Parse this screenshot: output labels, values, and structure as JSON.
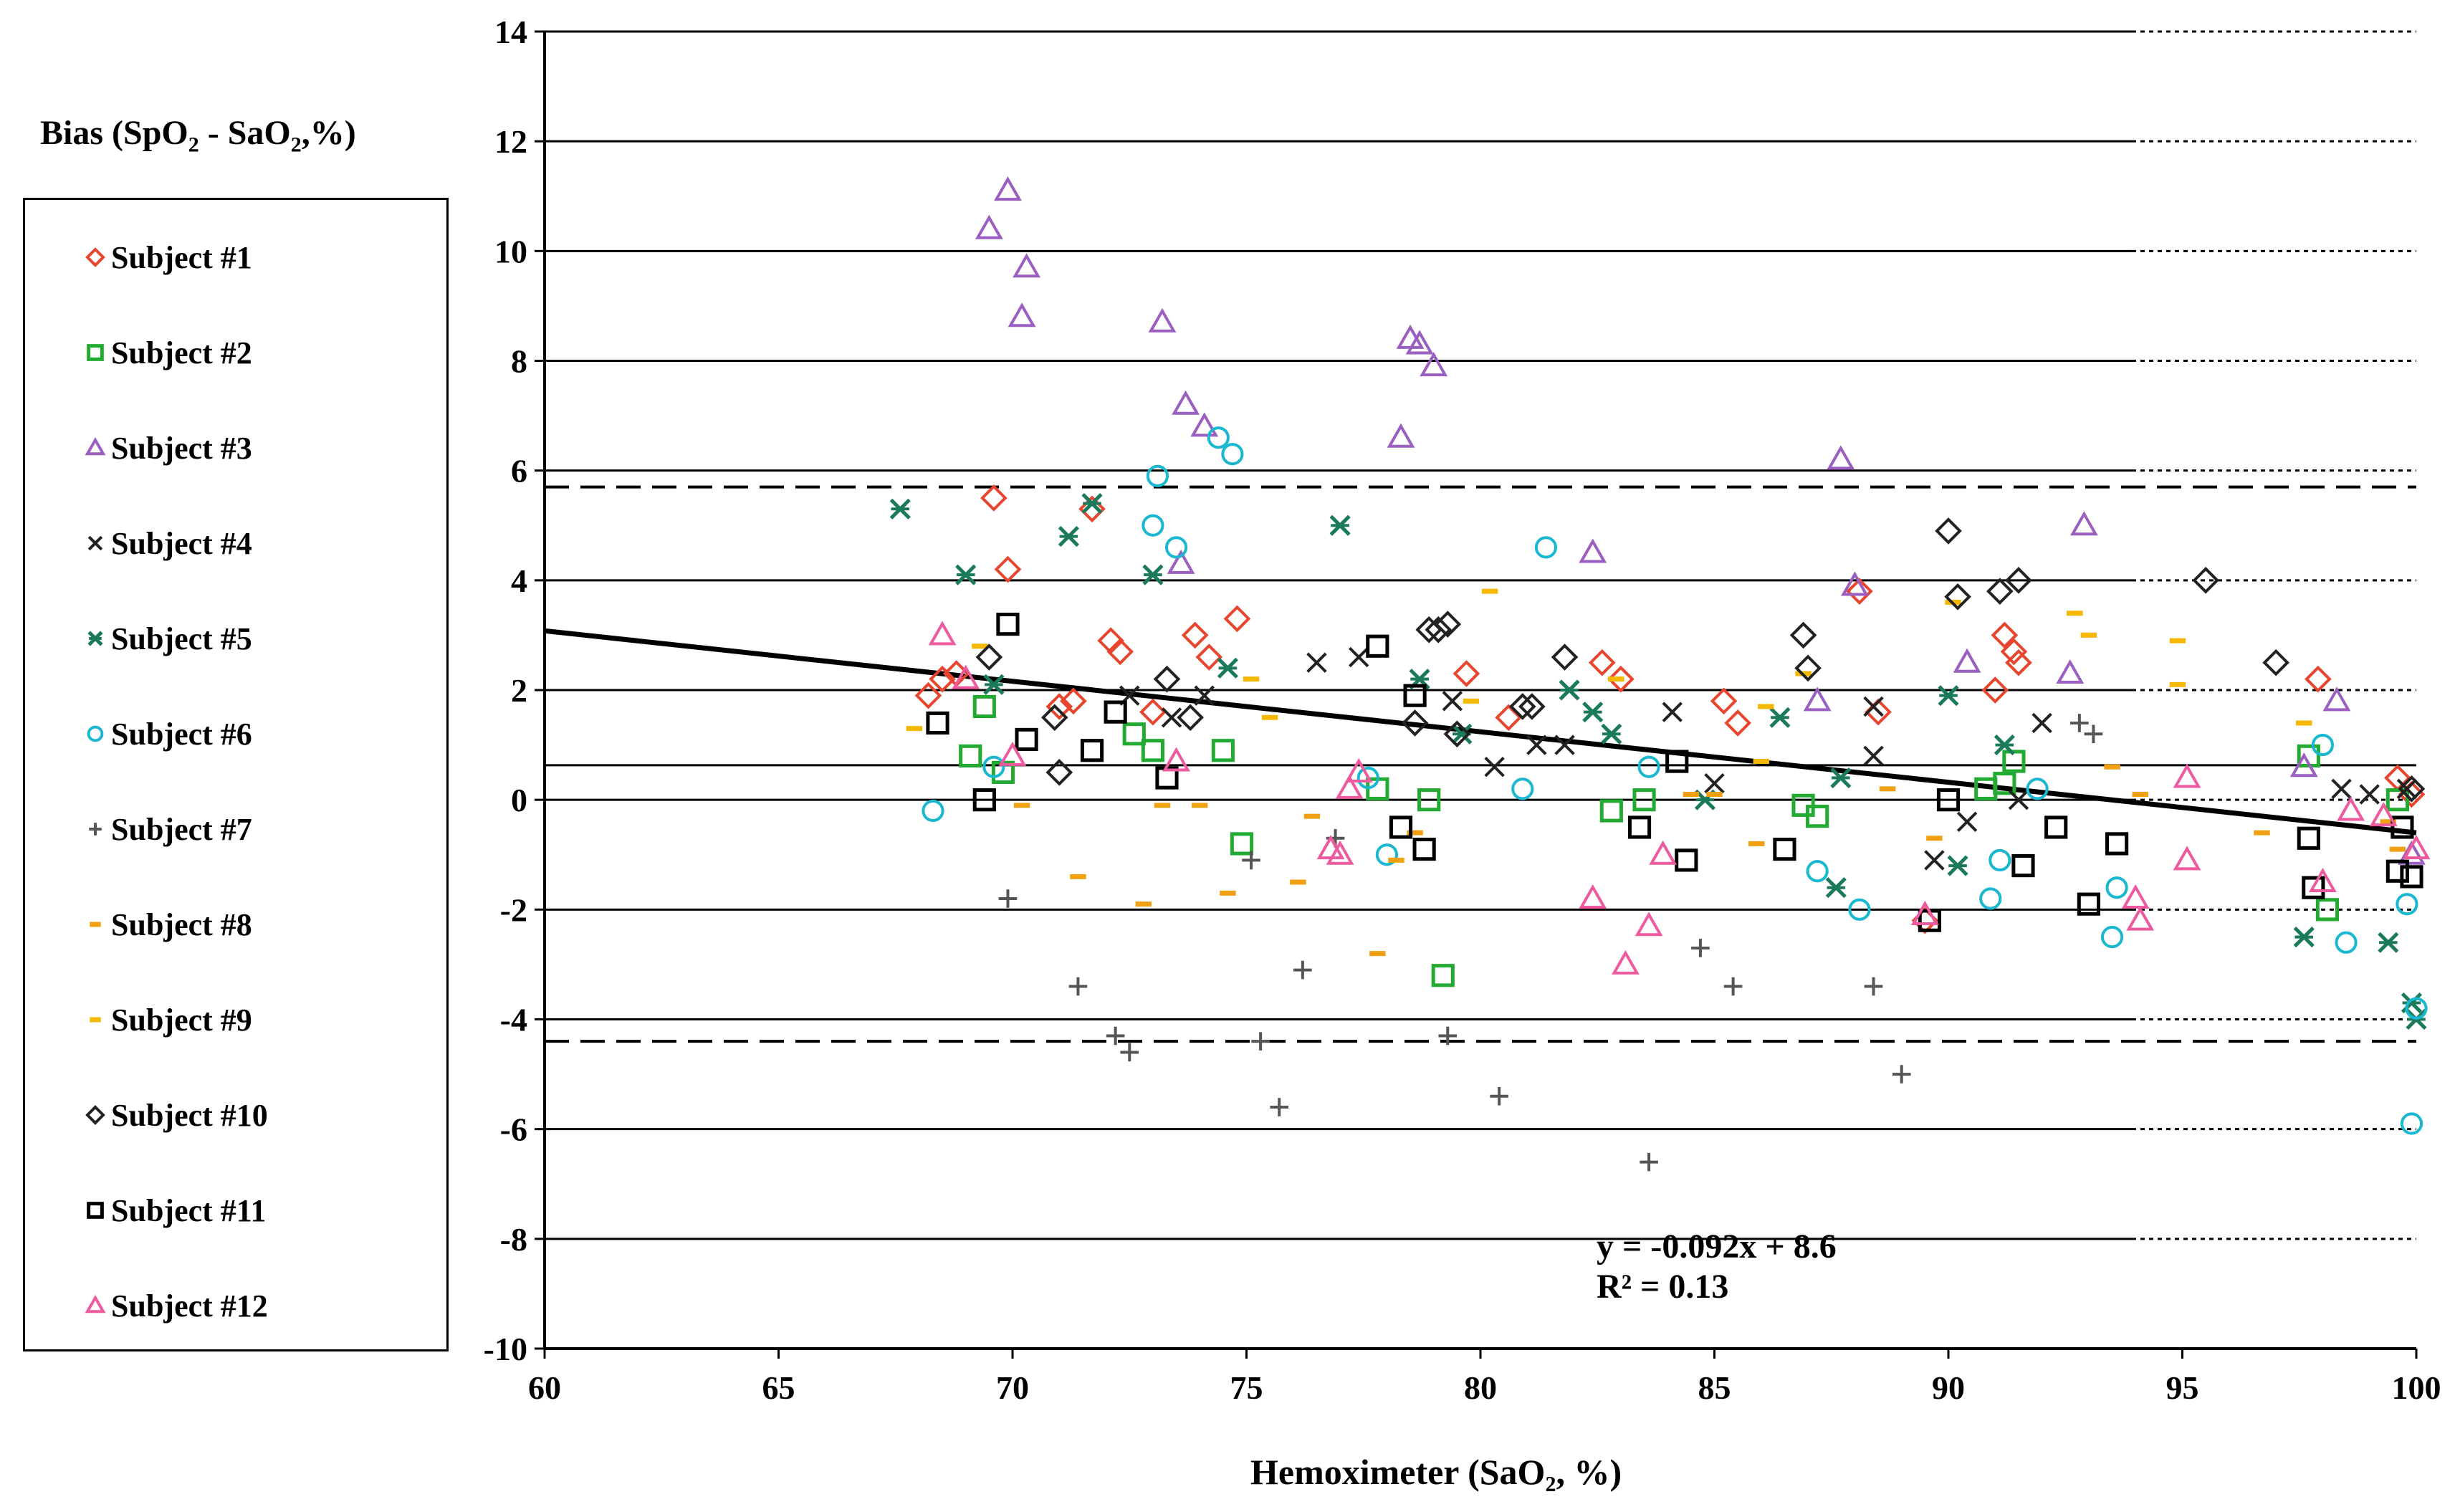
{
  "chart_data": {
    "type": "scatter",
    "title": "",
    "xlabel": "Hemoximeter (SaO₂, %)",
    "ylabel": {
      "prefix": "Bias (SpO",
      "sub1": "2",
      "mid": " - SaO",
      "sub2": "2",
      "suffix": ",%)"
    },
    "xlim": [
      60,
      100
    ],
    "ylim": [
      -10,
      14
    ],
    "x_ticks": [
      60,
      65,
      70,
      75,
      80,
      85,
      90,
      95,
      100
    ],
    "y_ticks": [
      14,
      12,
      10,
      8,
      6,
      4,
      2,
      0,
      -2,
      -4,
      -6,
      -8,
      -10
    ],
    "mean_bias": 0.63,
    "limits_of_agreement": [
      5.7,
      -4.4
    ],
    "trend_line": {
      "slope": -0.092,
      "intercept": 8.6,
      "x_range": [
        60,
        100
      ]
    },
    "equation": {
      "line1": "y = -0.092x  + 8.6",
      "line2": "R² = 0.13"
    },
    "legend_position": "left",
    "series": [
      {
        "name": "Subject #1",
        "color": "#e8452e",
        "marker": "diamond",
        "points": [
          [
            68.2,
            1.9
          ],
          [
            68.5,
            2.2
          ],
          [
            68.8,
            2.3
          ],
          [
            69.6,
            5.5
          ],
          [
            69.9,
            4.2
          ],
          [
            71.0,
            1.7
          ],
          [
            71.3,
            1.8
          ],
          [
            71.7,
            5.3
          ],
          [
            72.1,
            2.9
          ],
          [
            72.3,
            2.7
          ],
          [
            73.0,
            1.6
          ],
          [
            73.9,
            3.0
          ],
          [
            74.2,
            2.6
          ],
          [
            74.8,
            3.3
          ],
          [
            79.7,
            2.3
          ],
          [
            80.6,
            1.5
          ],
          [
            82.6,
            2.5
          ],
          [
            83.0,
            2.2
          ],
          [
            85.2,
            1.8
          ],
          [
            85.5,
            1.4
          ],
          [
            88.1,
            3.8
          ],
          [
            88.5,
            1.6
          ],
          [
            89.5,
            -2.2
          ],
          [
            91.0,
            2.0
          ],
          [
            91.2,
            3.0
          ],
          [
            91.4,
            2.7
          ],
          [
            91.5,
            2.5
          ],
          [
            97.9,
            2.2
          ],
          [
            99.6,
            0.4
          ],
          [
            99.9,
            0.1
          ]
        ]
      },
      {
        "name": "Subject #2",
        "color": "#22aa33",
        "marker": "square",
        "points": [
          [
            69.1,
            0.8
          ],
          [
            69.4,
            1.7
          ],
          [
            69.8,
            0.5
          ],
          [
            72.6,
            1.2
          ],
          [
            73.0,
            0.9
          ],
          [
            74.5,
            0.9
          ],
          [
            74.9,
            -0.8
          ],
          [
            77.8,
            0.2
          ],
          [
            78.9,
            0.0
          ],
          [
            79.2,
            -3.2
          ],
          [
            82.8,
            -0.2
          ],
          [
            83.5,
            0.0
          ],
          [
            86.9,
            -0.1
          ],
          [
            87.2,
            -0.3
          ],
          [
            90.8,
            0.2
          ],
          [
            91.2,
            0.3
          ],
          [
            91.4,
            0.7
          ],
          [
            97.7,
            0.8
          ],
          [
            98.1,
            -2.0
          ],
          [
            99.6,
            0.0
          ]
        ]
      },
      {
        "name": "Subject #3",
        "color": "#9a5fc0",
        "marker": "triangle",
        "points": [
          [
            69.5,
            10.4
          ],
          [
            69.9,
            11.1
          ],
          [
            70.2,
            8.8
          ],
          [
            70.3,
            9.7
          ],
          [
            73.2,
            8.7
          ],
          [
            73.6,
            4.3
          ],
          [
            73.7,
            7.2
          ],
          [
            74.1,
            6.8
          ],
          [
            78.3,
            6.6
          ],
          [
            78.5,
            8.4
          ],
          [
            78.7,
            8.3
          ],
          [
            79.0,
            7.9
          ],
          [
            82.4,
            4.5
          ],
          [
            87.2,
            1.8
          ],
          [
            87.7,
            6.2
          ],
          [
            88.0,
            3.9
          ],
          [
            90.4,
            2.5
          ],
          [
            92.6,
            2.3
          ],
          [
            92.9,
            5.0
          ],
          [
            97.6,
            0.6
          ],
          [
            98.3,
            1.8
          ],
          [
            99.9,
            -1.0
          ]
        ]
      },
      {
        "name": "Subject #4",
        "color": "#222222",
        "marker": "x",
        "points": [
          [
            72.5,
            1.9
          ],
          [
            73.4,
            1.5
          ],
          [
            74.1,
            1.9
          ],
          [
            76.5,
            2.5
          ],
          [
            77.4,
            2.6
          ],
          [
            79.4,
            1.8
          ],
          [
            80.3,
            0.6
          ],
          [
            81.2,
            1.0
          ],
          [
            81.8,
            1.0
          ],
          [
            84.1,
            1.6
          ],
          [
            85.0,
            0.3
          ],
          [
            88.4,
            1.7
          ],
          [
            88.4,
            0.8
          ],
          [
            89.7,
            -1.1
          ],
          [
            90.4,
            -0.4
          ],
          [
            91.5,
            0.0
          ],
          [
            92.0,
            1.4
          ],
          [
            98.4,
            0.2
          ],
          [
            99.0,
            0.1
          ],
          [
            99.8,
            0.2
          ]
        ]
      },
      {
        "name": "Subject #5",
        "color": "#1a7a5a",
        "marker": "asterisk",
        "points": [
          [
            67.6,
            5.3
          ],
          [
            69.0,
            4.1
          ],
          [
            69.6,
            2.1
          ],
          [
            71.2,
            4.8
          ],
          [
            71.7,
            5.4
          ],
          [
            73.0,
            4.1
          ],
          [
            74.6,
            2.4
          ],
          [
            77.0,
            5.0
          ],
          [
            78.7,
            2.2
          ],
          [
            79.6,
            1.2
          ],
          [
            81.9,
            2.0
          ],
          [
            82.4,
            1.6
          ],
          [
            82.8,
            1.2
          ],
          [
            84.8,
            0.0
          ],
          [
            86.4,
            1.5
          ],
          [
            87.6,
            -1.6
          ],
          [
            87.7,
            0.4
          ],
          [
            90.0,
            1.9
          ],
          [
            90.2,
            -1.2
          ],
          [
            91.2,
            1.0
          ],
          [
            97.6,
            -2.5
          ],
          [
            99.4,
            -2.6
          ],
          [
            99.9,
            -3.7
          ],
          [
            100.0,
            -4.0
          ]
        ]
      },
      {
        "name": "Subject #6",
        "color": "#1ab8d0",
        "marker": "circle",
        "points": [
          [
            68.3,
            -0.2
          ],
          [
            69.6,
            0.6
          ],
          [
            73.0,
            5.0
          ],
          [
            73.1,
            5.9
          ],
          [
            73.5,
            4.6
          ],
          [
            74.4,
            6.6
          ],
          [
            74.7,
            6.3
          ],
          [
            77.6,
            0.4
          ],
          [
            78.0,
            -1.0
          ],
          [
            80.9,
            0.2
          ],
          [
            81.4,
            4.6
          ],
          [
            83.6,
            0.6
          ],
          [
            87.2,
            -1.3
          ],
          [
            88.1,
            -2.0
          ],
          [
            90.9,
            -1.8
          ],
          [
            91.1,
            -1.1
          ],
          [
            91.9,
            0.2
          ],
          [
            93.5,
            -2.5
          ],
          [
            93.6,
            -1.6
          ],
          [
            98.0,
            1.0
          ],
          [
            98.5,
            -2.6
          ],
          [
            99.8,
            -1.9
          ],
          [
            99.9,
            -5.9
          ],
          [
            100.0,
            -3.8
          ]
        ]
      },
      {
        "name": "Subject #7",
        "color": "#555555",
        "marker": "plus",
        "points": [
          [
            69.9,
            -1.8
          ],
          [
            71.4,
            -3.4
          ],
          [
            72.2,
            -4.3
          ],
          [
            72.5,
            -4.6
          ],
          [
            75.1,
            -1.1
          ],
          [
            75.3,
            -4.4
          ],
          [
            75.7,
            -5.6
          ],
          [
            76.2,
            -3.1
          ],
          [
            76.9,
            -0.7
          ],
          [
            79.3,
            -4.3
          ],
          [
            80.4,
            -5.4
          ],
          [
            83.6,
            -6.6
          ],
          [
            84.7,
            -2.7
          ],
          [
            85.4,
            -3.4
          ],
          [
            88.4,
            -3.4
          ],
          [
            89.0,
            -5.0
          ],
          [
            92.8,
            1.4
          ],
          [
            93.1,
            1.2
          ]
        ]
      },
      {
        "name": "Subject #8",
        "color": "#f0a010",
        "marker": "dash",
        "points": [
          [
            70.2,
            -0.1
          ],
          [
            71.4,
            -1.4
          ],
          [
            72.8,
            -1.9
          ],
          [
            73.2,
            -0.1
          ],
          [
            74.0,
            -0.1
          ],
          [
            74.6,
            -1.7
          ],
          [
            76.1,
            -1.5
          ],
          [
            76.4,
            -0.3
          ],
          [
            77.8,
            -2.8
          ],
          [
            78.2,
            -1.1
          ],
          [
            78.6,
            -0.6
          ],
          [
            84.5,
            0.1
          ],
          [
            85.0,
            0.1
          ],
          [
            85.9,
            -0.8
          ],
          [
            88.7,
            0.2
          ],
          [
            89.7,
            -0.7
          ],
          [
            93.5,
            0.6
          ],
          [
            94.1,
            0.1
          ],
          [
            96.7,
            -0.6
          ],
          [
            99.4,
            -0.4
          ],
          [
            99.6,
            -0.9
          ]
        ]
      },
      {
        "name": "Subject #9",
        "color": "#f5b800",
        "marker": "dash",
        "points": [
          [
            67.9,
            1.3
          ],
          [
            69.3,
            2.8
          ],
          [
            75.1,
            2.2
          ],
          [
            75.5,
            1.5
          ],
          [
            79.8,
            1.8
          ],
          [
            80.2,
            3.8
          ],
          [
            82.9,
            2.2
          ],
          [
            86.0,
            0.7
          ],
          [
            86.1,
            1.7
          ],
          [
            86.9,
            2.3
          ],
          [
            90.1,
            3.6
          ],
          [
            92.7,
            3.4
          ],
          [
            93.0,
            3.0
          ],
          [
            94.9,
            2.9
          ],
          [
            94.9,
            2.1
          ],
          [
            97.6,
            1.4
          ]
        ]
      },
      {
        "name": "Subject #10",
        "color": "#222222",
        "marker": "diamond",
        "points": [
          [
            69.5,
            2.6
          ],
          [
            70.9,
            1.5
          ],
          [
            71.0,
            0.5
          ],
          [
            73.3,
            2.2
          ],
          [
            73.8,
            1.5
          ],
          [
            78.6,
            1.4
          ],
          [
            78.9,
            3.1
          ],
          [
            79.1,
            3.1
          ],
          [
            79.3,
            3.2
          ],
          [
            79.5,
            1.2
          ],
          [
            80.9,
            1.7
          ],
          [
            81.1,
            1.7
          ],
          [
            81.8,
            2.6
          ],
          [
            86.9,
            3.0
          ],
          [
            87.0,
            2.4
          ],
          [
            90.0,
            4.9
          ],
          [
            90.2,
            3.7
          ],
          [
            91.1,
            3.8
          ],
          [
            91.5,
            4.0
          ],
          [
            95.5,
            4.0
          ],
          [
            97.0,
            2.5
          ],
          [
            99.9,
            0.2
          ]
        ]
      },
      {
        "name": "Subject #11",
        "color": "#000000",
        "marker": "square",
        "points": [
          [
            68.4,
            1.4
          ],
          [
            69.4,
            0.0
          ],
          [
            69.9,
            3.2
          ],
          [
            70.3,
            1.1
          ],
          [
            71.7,
            0.9
          ],
          [
            72.2,
            1.6
          ],
          [
            73.3,
            0.4
          ],
          [
            77.8,
            2.8
          ],
          [
            78.3,
            -0.5
          ],
          [
            78.6,
            1.9
          ],
          [
            78.8,
            -0.9
          ],
          [
            83.4,
            -0.5
          ],
          [
            84.2,
            0.7
          ],
          [
            84.4,
            -1.1
          ],
          [
            86.5,
            -0.9
          ],
          [
            89.6,
            -2.2
          ],
          [
            90.0,
            0.0
          ],
          [
            91.6,
            -1.2
          ],
          [
            92.3,
            -0.5
          ],
          [
            93.0,
            -1.9
          ],
          [
            93.6,
            -0.8
          ],
          [
            97.7,
            -0.7
          ],
          [
            97.8,
            -1.6
          ],
          [
            99.6,
            -1.3
          ],
          [
            99.7,
            -0.5
          ],
          [
            99.9,
            -1.4
          ]
        ]
      },
      {
        "name": "Subject #12",
        "color": "#ee5aa0",
        "marker": "triangle",
        "points": [
          [
            68.5,
            3.0
          ],
          [
            69.0,
            2.2
          ],
          [
            70.0,
            0.8
          ],
          [
            73.5,
            0.7
          ],
          [
            76.8,
            -0.9
          ],
          [
            77.0,
            -1.0
          ],
          [
            77.2,
            0.2
          ],
          [
            77.4,
            0.5
          ],
          [
            82.4,
            -1.8
          ],
          [
            83.1,
            -3.0
          ],
          [
            83.6,
            -2.3
          ],
          [
            83.9,
            -1.0
          ],
          [
            89.5,
            -2.1
          ],
          [
            94.0,
            -1.8
          ],
          [
            94.1,
            -2.2
          ],
          [
            95.1,
            -1.1
          ],
          [
            95.1,
            0.4
          ],
          [
            98.0,
            -1.5
          ],
          [
            98.6,
            -0.2
          ],
          [
            99.3,
            -0.3
          ],
          [
            100.0,
            -0.9
          ]
        ]
      }
    ]
  }
}
